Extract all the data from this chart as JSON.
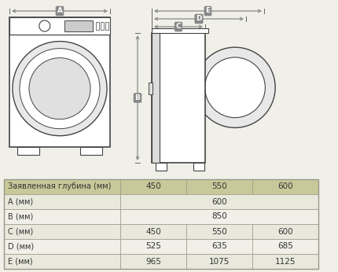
{
  "bg_color": "#f0efe8",
  "table_header_color": "#c8c89a",
  "table_row_colors": [
    "#e8e8dc",
    "#f0efe8"
  ],
  "table_border_color": "#999988",
  "table_data": {
    "col0_label": "Заявленная глубина (мм)",
    "col1": "450",
    "col2": "550",
    "col3": "600",
    "rows": [
      {
        "label": "A (мм)",
        "val1": "",
        "val2": "600",
        "val3": "",
        "span": true
      },
      {
        "label": "B (мм)",
        "val1": "",
        "val2": "850",
        "val3": "",
        "span": true
      },
      {
        "label": "C (мм)",
        "val1": "450",
        "val2": "550",
        "val3": "600",
        "span": false
      },
      {
        "label": "D (мм)",
        "val1": "525",
        "val2": "635",
        "val3": "685",
        "span": false
      },
      {
        "label": "E (мм)",
        "val1": "965",
        "val2": "1075",
        "val3": "1125",
        "span": false
      }
    ]
  },
  "diagram_color": "#444444",
  "arrow_color": "#666666",
  "badge_color": "#888888"
}
